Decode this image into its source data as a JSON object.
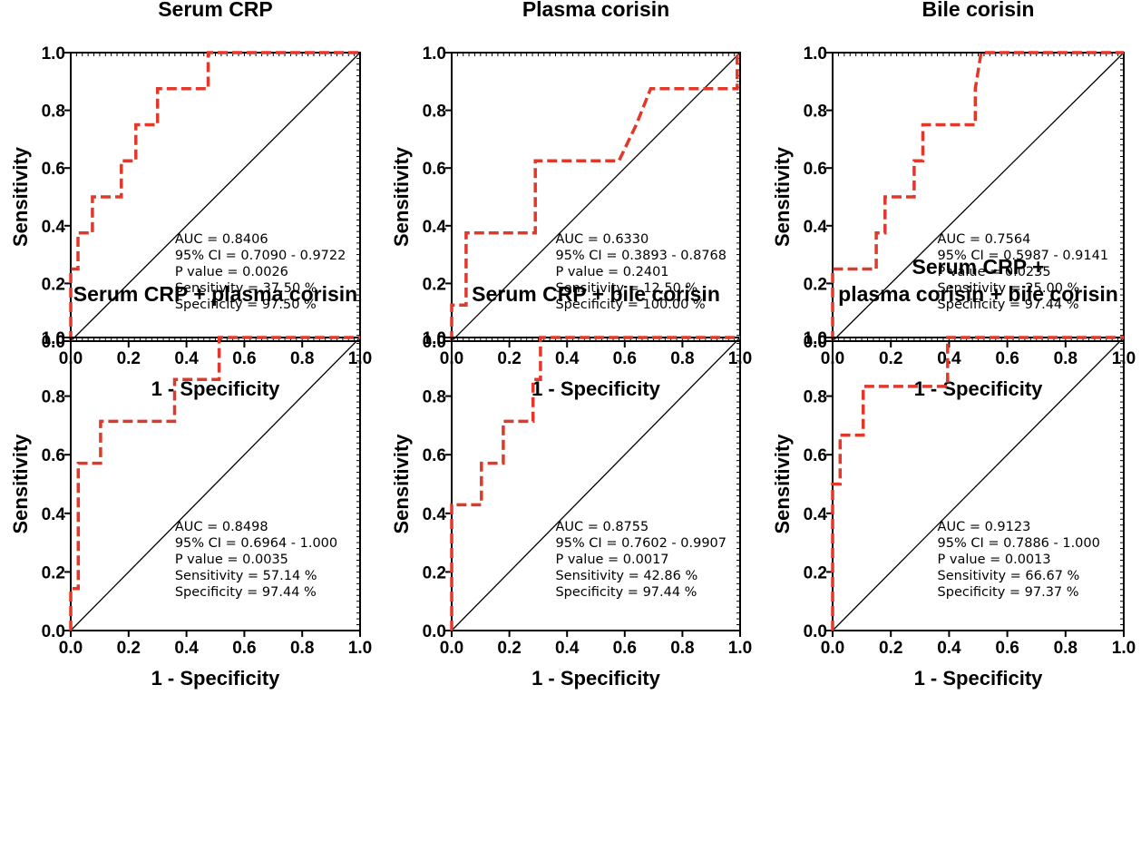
{
  "chart_data": [
    {
      "type": "line",
      "title": [
        "Serum CRP"
      ],
      "xlabel": "1 - Specificity",
      "ylabel": "Sensitivity",
      "xlim": [
        0,
        1
      ],
      "ylim": [
        0,
        1
      ],
      "xticks": [
        "0.0",
        "0.2",
        "0.4",
        "0.6",
        "0.8",
        "1.0"
      ],
      "yticks": [
        "0.0",
        "0.2",
        "0.4",
        "0.6",
        "0.8",
        "1.0"
      ],
      "reference_line": [
        [
          0,
          0
        ],
        [
          1,
          1
        ]
      ],
      "roc_color": "#e2382a",
      "roc_curve": [
        [
          0,
          0
        ],
        [
          0,
          0.25
        ],
        [
          0.025,
          0.25
        ],
        [
          0.025,
          0.375
        ],
        [
          0.075,
          0.375
        ],
        [
          0.075,
          0.5
        ],
        [
          0.175,
          0.5
        ],
        [
          0.175,
          0.625
        ],
        [
          0.225,
          0.625
        ],
        [
          0.225,
          0.75
        ],
        [
          0.3,
          0.75
        ],
        [
          0.3,
          0.875
        ],
        [
          0.475,
          0.875
        ],
        [
          0.475,
          1
        ],
        [
          1,
          1
        ]
      ],
      "stats": [
        "AUC = 0.8406",
        "95% CI = 0.7090 - 0.9722",
        "P value = 0.0026",
        "Sensitivity = 37.50 %",
        "Specificity = 97.50 %"
      ]
    },
    {
      "type": "line",
      "title": [
        "Plasma corisin"
      ],
      "xlabel": "1 - Specificity",
      "ylabel": "Sensitivity",
      "xlim": [
        0,
        1
      ],
      "ylim": [
        0,
        1
      ],
      "xticks": [
        "0.0",
        "0.2",
        "0.4",
        "0.6",
        "0.8",
        "1.0"
      ],
      "yticks": [
        "0.0",
        "0.2",
        "0.4",
        "0.6",
        "0.8",
        "1.0"
      ],
      "reference_line": [
        [
          0,
          0
        ],
        [
          1,
          1
        ]
      ],
      "roc_color": "#e2382a",
      "roc_curve": [
        [
          0,
          0
        ],
        [
          0,
          0.125
        ],
        [
          0.05,
          0.125
        ],
        [
          0.05,
          0.375
        ],
        [
          0.29,
          0.375
        ],
        [
          0.29,
          0.625
        ],
        [
          0.58,
          0.625
        ],
        [
          0.64,
          0.75
        ],
        [
          0.69,
          0.875
        ],
        [
          0.99,
          0.875
        ],
        [
          0.99,
          1
        ],
        [
          1,
          1
        ]
      ],
      "stats": [
        "AUC = 0.6330",
        "95% CI = 0.3893 - 0.8768",
        "P value = 0.2401",
        "Sensitivity = 12.50 %",
        "Specificity = 100.00 %"
      ]
    },
    {
      "type": "line",
      "title": [
        "Bile corisin"
      ],
      "xlabel": "1 - Specificity",
      "ylabel": "Sensitivity",
      "xlim": [
        0,
        1
      ],
      "ylim": [
        0,
        1
      ],
      "xticks": [
        "0.0",
        "0.2",
        "0.4",
        "0.6",
        "0.8",
        "1.0"
      ],
      "yticks": [
        "0.0",
        "0.2",
        "0.4",
        "0.6",
        "0.8",
        "1.0"
      ],
      "reference_line": [
        [
          0,
          0
        ],
        [
          1,
          1
        ]
      ],
      "roc_color": "#e2382a",
      "roc_curve": [
        [
          0,
          0
        ],
        [
          0,
          0.25
        ],
        [
          0.15,
          0.25
        ],
        [
          0.15,
          0.375
        ],
        [
          0.18,
          0.375
        ],
        [
          0.18,
          0.5
        ],
        [
          0.28,
          0.5
        ],
        [
          0.28,
          0.625
        ],
        [
          0.31,
          0.625
        ],
        [
          0.31,
          0.75
        ],
        [
          0.49,
          0.75
        ],
        [
          0.49,
          0.875
        ],
        [
          0.51,
          1
        ],
        [
          1,
          1
        ]
      ],
      "stats": [
        "AUC = 0.7564",
        "95% CI = 0.5987 - 0.9141",
        "P value = 0.0235",
        "Sensitivity = 25.00 %",
        "Specificity = 97.44 %"
      ]
    },
    {
      "type": "line",
      "title": [
        "Serum CRP + plasma corisin"
      ],
      "xlabel": "1 - Specificity",
      "ylabel": "Sensitivity",
      "xlim": [
        0,
        1
      ],
      "ylim": [
        0,
        1
      ],
      "xticks": [
        "0.0",
        "0.2",
        "0.4",
        "0.6",
        "0.8",
        "1.0"
      ],
      "yticks": [
        "0.0",
        "0.2",
        "0.4",
        "0.6",
        "0.8",
        "1.0"
      ],
      "reference_line": [
        [
          0,
          0
        ],
        [
          1,
          1
        ]
      ],
      "roc_color": "#e2382a",
      "roc_curve": [
        [
          0,
          0
        ],
        [
          0,
          0.143
        ],
        [
          0.026,
          0.143
        ],
        [
          0.026,
          0.571
        ],
        [
          0.103,
          0.571
        ],
        [
          0.103,
          0.714
        ],
        [
          0.359,
          0.714
        ],
        [
          0.359,
          0.857
        ],
        [
          0.513,
          0.857
        ],
        [
          0.513,
          1
        ],
        [
          1,
          1
        ]
      ],
      "stats": [
        "AUC = 0.8498",
        "95% CI = 0.6964 - 1.000",
        "P value = 0.0035",
        "Sensitivity = 57.14 %",
        "Specificity = 97.44 %"
      ]
    },
    {
      "type": "line",
      "title": [
        "Serum CRP + bile corisin"
      ],
      "xlabel": "1 - Specificity",
      "ylabel": "Sensitivity",
      "xlim": [
        0,
        1
      ],
      "ylim": [
        0,
        1
      ],
      "xticks": [
        "0.0",
        "0.2",
        "0.4",
        "0.6",
        "0.8",
        "1.0"
      ],
      "yticks": [
        "0.0",
        "0.2",
        "0.4",
        "0.6",
        "0.8",
        "1.0"
      ],
      "reference_line": [
        [
          0,
          0
        ],
        [
          1,
          1
        ]
      ],
      "roc_color": "#e2382a",
      "roc_curve": [
        [
          0,
          0
        ],
        [
          0,
          0.429
        ],
        [
          0.103,
          0.429
        ],
        [
          0.103,
          0.571
        ],
        [
          0.179,
          0.571
        ],
        [
          0.179,
          0.714
        ],
        [
          0.282,
          0.714
        ],
        [
          0.282,
          0.857
        ],
        [
          0.308,
          0.857
        ],
        [
          0.308,
          1
        ],
        [
          1,
          1
        ]
      ],
      "stats": [
        "AUC = 0.8755",
        "95% CI = 0.7602 - 0.9907",
        "P value = 0.0017",
        "Sensitivity = 42.86 %",
        "Specificity = 97.44 %"
      ]
    },
    {
      "type": "line",
      "title": [
        "Serum CRP +",
        "plasma corisin + bile corisin"
      ],
      "xlabel": "1 - Specificity",
      "ylabel": "Sensitivity",
      "xlim": [
        0,
        1
      ],
      "ylim": [
        0,
        1
      ],
      "xticks": [
        "0.0",
        "0.2",
        "0.4",
        "0.6",
        "0.8",
        "1.0"
      ],
      "yticks": [
        "0.0",
        "0.2",
        "0.4",
        "0.6",
        "0.8",
        "1.0"
      ],
      "reference_line": [
        [
          0,
          0
        ],
        [
          1,
          1
        ]
      ],
      "roc_color": "#e2382a",
      "roc_curve": [
        [
          0,
          0
        ],
        [
          0,
          0.5
        ],
        [
          0.026,
          0.5
        ],
        [
          0.026,
          0.667
        ],
        [
          0.105,
          0.667
        ],
        [
          0.105,
          0.833
        ],
        [
          0.395,
          0.833
        ],
        [
          0.395,
          1
        ],
        [
          1,
          1
        ]
      ],
      "stats": [
        "AUC = 0.9123",
        "95% CI = 0.7886 - 1.000",
        "P value = 0.0013",
        "Sensitivity = 66.67 %",
        "Specificity = 97.37 %"
      ]
    }
  ]
}
